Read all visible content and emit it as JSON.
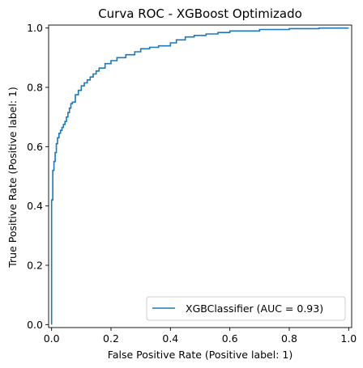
{
  "chart_data": {
    "type": "line",
    "title": "Curva ROC - XGBoost Optimizado",
    "xlabel": "False Positive Rate (Positive label: 1)",
    "ylabel": "True Positive Rate (Positive label: 1)",
    "xlim": [
      -0.01,
      1.01
    ],
    "ylim": [
      -0.01,
      1.01
    ],
    "xticks": [
      0.0,
      0.2,
      0.4,
      0.6,
      0.8,
      1.0
    ],
    "yticks": [
      0.0,
      0.2,
      0.4,
      0.6,
      0.8,
      1.0
    ],
    "xtick_labels": [
      "0.0",
      "0.2",
      "0.4",
      "0.6",
      "0.8",
      "1.0"
    ],
    "ytick_labels": [
      "0.0",
      "0.2",
      "0.4",
      "0.6",
      "0.8",
      "1.0"
    ],
    "grid": false,
    "legend_position": "lower-right",
    "series": [
      {
        "name": "XGBClassifier (AUC = 0.93)",
        "color": "#1f77b4",
        "x": [
          0.0,
          0.0,
          0.004,
          0.004,
          0.008,
          0.008,
          0.012,
          0.012,
          0.016,
          0.016,
          0.02,
          0.02,
          0.025,
          0.025,
          0.03,
          0.03,
          0.035,
          0.035,
          0.04,
          0.04,
          0.045,
          0.045,
          0.05,
          0.05,
          0.055,
          0.055,
          0.06,
          0.06,
          0.065,
          0.065,
          0.07,
          0.07,
          0.08,
          0.08,
          0.09,
          0.09,
          0.1,
          0.1,
          0.11,
          0.11,
          0.12,
          0.12,
          0.13,
          0.13,
          0.14,
          0.14,
          0.15,
          0.15,
          0.16,
          0.16,
          0.18,
          0.18,
          0.2,
          0.2,
          0.22,
          0.22,
          0.25,
          0.25,
          0.28,
          0.28,
          0.3,
          0.3,
          0.33,
          0.33,
          0.36,
          0.36,
          0.4,
          0.4,
          0.42,
          0.42,
          0.45,
          0.45,
          0.48,
          0.48,
          0.52,
          0.52,
          0.56,
          0.56,
          0.6,
          0.6,
          0.7,
          0.7,
          0.8,
          0.8,
          0.9,
          0.9,
          1.0
        ],
        "y": [
          0.0,
          0.42,
          0.42,
          0.52,
          0.52,
          0.55,
          0.55,
          0.58,
          0.58,
          0.61,
          0.61,
          0.63,
          0.63,
          0.645,
          0.645,
          0.655,
          0.655,
          0.665,
          0.665,
          0.675,
          0.675,
          0.685,
          0.685,
          0.7,
          0.7,
          0.715,
          0.715,
          0.73,
          0.73,
          0.745,
          0.745,
          0.75,
          0.75,
          0.775,
          0.775,
          0.79,
          0.79,
          0.805,
          0.805,
          0.815,
          0.815,
          0.825,
          0.825,
          0.835,
          0.835,
          0.845,
          0.845,
          0.855,
          0.855,
          0.865,
          0.865,
          0.88,
          0.88,
          0.89,
          0.89,
          0.9,
          0.9,
          0.91,
          0.91,
          0.92,
          0.92,
          0.93,
          0.93,
          0.935,
          0.935,
          0.94,
          0.94,
          0.95,
          0.95,
          0.96,
          0.96,
          0.97,
          0.97,
          0.975,
          0.975,
          0.98,
          0.98,
          0.985,
          0.985,
          0.99,
          0.99,
          0.995,
          0.995,
          0.998,
          0.998,
          1.0,
          1.0
        ]
      }
    ]
  }
}
